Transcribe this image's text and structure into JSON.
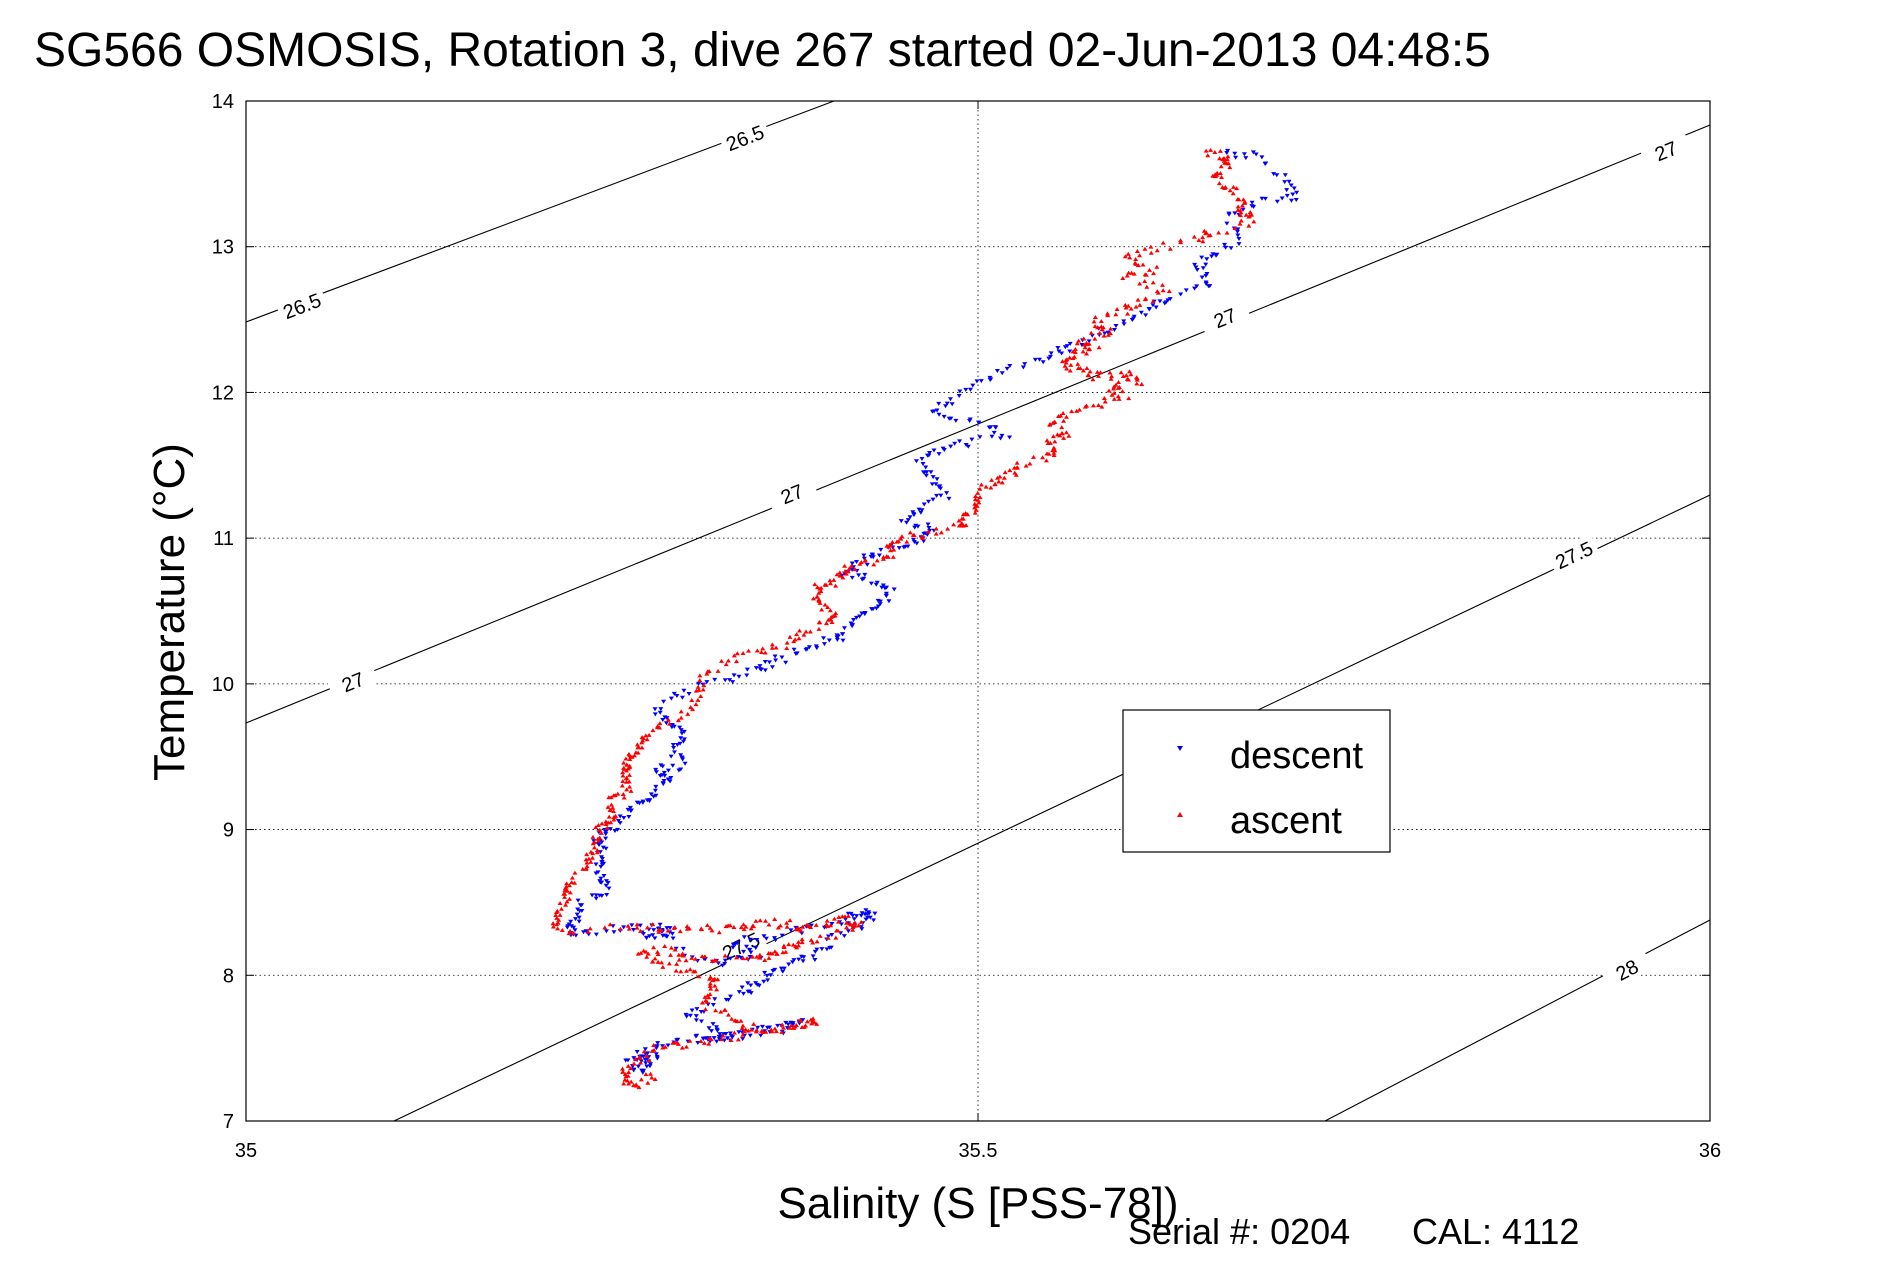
{
  "chart_data": {
    "type": "scatter",
    "title": "SG566 OSMOSIS, Rotation 3, dive 267 started 02-Jun-2013 04:48:5",
    "xlabel": "Salinity (S [PSS-78])",
    "ylabel": "Temperature (°C)",
    "xlim": [
      35,
      36
    ],
    "ylim": [
      7,
      14
    ],
    "xticks": [
      35,
      35.5,
      36
    ],
    "xtick_labels": [
      "35",
      "35.5",
      "36"
    ],
    "yticks": [
      7,
      8,
      9,
      10,
      11,
      12,
      13,
      14
    ],
    "ytick_labels": [
      "7",
      "8",
      "9",
      "10",
      "11",
      "12",
      "13",
      "14"
    ],
    "grid": true,
    "legend_position": "center-right",
    "density_contours": [
      {
        "level": "26.5",
        "labels": [
          "26.5",
          "26.5"
        ]
      },
      {
        "level": "27",
        "labels": [
          "27",
          "27",
          "27",
          "27"
        ]
      },
      {
        "level": "27.5",
        "labels": [
          "27.5",
          "27.5"
        ]
      },
      {
        "level": "28",
        "labels": [
          "28"
        ]
      }
    ],
    "series": [
      {
        "name": "descent",
        "color": "#0000ff",
        "marker": "triangle-down",
        "path": [
          [
            35.67,
            13.65
          ],
          [
            35.69,
            13.62
          ],
          [
            35.71,
            13.45
          ],
          [
            35.72,
            13.35
          ],
          [
            35.69,
            13.3
          ],
          [
            35.67,
            13.2
          ],
          [
            35.68,
            13.05
          ],
          [
            35.66,
            12.95
          ],
          [
            35.65,
            12.85
          ],
          [
            35.66,
            12.72
          ],
          [
            35.63,
            12.65
          ],
          [
            35.62,
            12.58
          ],
          [
            35.6,
            12.5
          ],
          [
            35.58,
            12.4
          ],
          [
            35.56,
            12.3
          ],
          [
            35.55,
            12.25
          ],
          [
            35.52,
            12.15
          ],
          [
            35.5,
            12.05
          ],
          [
            35.48,
            11.95
          ],
          [
            35.47,
            11.85
          ],
          [
            35.5,
            11.8
          ],
          [
            35.52,
            11.72
          ],
          [
            35.49,
            11.65
          ],
          [
            35.47,
            11.58
          ],
          [
            35.46,
            11.5
          ],
          [
            35.47,
            11.4
          ],
          [
            35.48,
            11.3
          ],
          [
            35.46,
            11.2
          ],
          [
            35.45,
            11.12
          ],
          [
            35.47,
            11.05
          ],
          [
            35.46,
            11.0
          ],
          [
            35.45,
            10.95
          ],
          [
            35.43,
            10.9
          ],
          [
            35.42,
            10.82
          ],
          [
            35.41,
            10.75
          ],
          [
            35.43,
            10.7
          ],
          [
            35.44,
            10.62
          ],
          [
            35.43,
            10.55
          ],
          [
            35.42,
            10.45
          ],
          [
            35.41,
            10.35
          ],
          [
            35.4,
            10.3
          ],
          [
            35.38,
            10.25
          ],
          [
            35.36,
            10.15
          ],
          [
            35.35,
            10.1
          ],
          [
            35.33,
            10.03
          ],
          [
            35.3,
            9.95
          ],
          [
            35.28,
            9.82
          ],
          [
            35.29,
            9.75
          ],
          [
            35.3,
            9.65
          ],
          [
            35.29,
            9.55
          ],
          [
            35.3,
            9.45
          ],
          [
            35.28,
            9.4
          ],
          [
            35.29,
            9.35
          ],
          [
            35.28,
            9.25
          ],
          [
            35.27,
            9.2
          ],
          [
            35.26,
            9.1
          ],
          [
            35.25,
            9.0
          ],
          [
            35.24,
            8.95
          ],
          [
            35.245,
            8.85
          ],
          [
            35.24,
            8.75
          ],
          [
            35.245,
            8.65
          ],
          [
            35.245,
            8.58
          ],
          [
            35.23,
            8.5
          ],
          [
            35.225,
            8.4
          ],
          [
            35.22,
            8.3
          ],
          [
            35.23,
            8.28
          ],
          [
            35.255,
            8.33
          ],
          [
            35.28,
            8.33
          ],
          [
            35.29,
            8.3
          ],
          [
            35.27,
            8.27
          ],
          [
            35.29,
            8.25
          ],
          [
            35.31,
            8.1
          ],
          [
            35.33,
            8.08
          ],
          [
            35.35,
            8.15
          ],
          [
            35.33,
            8.22
          ],
          [
            35.36,
            8.27
          ],
          [
            35.385,
            8.32
          ],
          [
            35.41,
            8.39
          ],
          [
            35.42,
            8.43
          ],
          [
            35.43,
            8.42
          ],
          [
            35.42,
            8.33
          ],
          [
            35.4,
            8.25
          ],
          [
            35.39,
            8.15
          ],
          [
            35.375,
            8.08
          ],
          [
            35.36,
            8.02
          ],
          [
            35.35,
            7.95
          ],
          [
            35.34,
            7.88
          ],
          [
            35.32,
            7.8
          ],
          [
            35.3,
            7.72
          ],
          [
            35.32,
            7.65
          ],
          [
            35.33,
            7.58
          ],
          [
            35.31,
            7.54
          ],
          [
            35.335,
            7.6
          ],
          [
            35.36,
            7.65
          ],
          [
            35.38,
            7.67
          ],
          [
            35.36,
            7.62
          ],
          [
            35.33,
            7.58
          ],
          [
            35.3,
            7.55
          ],
          [
            35.28,
            7.5
          ],
          [
            35.27,
            7.45
          ],
          [
            35.26,
            7.4
          ],
          [
            35.27,
            7.35
          ],
          [
            35.28,
            7.45
          ],
          [
            35.27,
            7.38
          ]
        ]
      },
      {
        "name": "ascent",
        "color": "#ff0000",
        "marker": "triangle-up",
        "path": [
          [
            35.655,
            13.65
          ],
          [
            35.67,
            13.62
          ],
          [
            35.67,
            13.55
          ],
          [
            35.66,
            13.48
          ],
          [
            35.67,
            13.4
          ],
          [
            35.68,
            13.33
          ],
          [
            35.68,
            13.25
          ],
          [
            35.69,
            13.18
          ],
          [
            35.66,
            13.1
          ],
          [
            35.65,
            13.05
          ],
          [
            35.62,
            12.98
          ],
          [
            35.6,
            12.92
          ],
          [
            35.62,
            12.85
          ],
          [
            35.6,
            12.78
          ],
          [
            35.63,
            12.7
          ],
          [
            35.61,
            12.62
          ],
          [
            35.6,
            12.55
          ],
          [
            35.58,
            12.48
          ],
          [
            35.59,
            12.42
          ],
          [
            35.57,
            12.36
          ],
          [
            35.58,
            12.3
          ],
          [
            35.565,
            12.25
          ],
          [
            35.56,
            12.2
          ],
          [
            35.57,
            12.15
          ],
          [
            35.58,
            12.1
          ],
          [
            35.6,
            12.12
          ],
          [
            35.61,
            12.08
          ],
          [
            35.59,
            12.03
          ],
          [
            35.6,
            11.98
          ],
          [
            35.58,
            11.92
          ],
          [
            35.56,
            11.85
          ],
          [
            35.55,
            11.78
          ],
          [
            35.56,
            11.72
          ],
          [
            35.55,
            11.64
          ],
          [
            35.55,
            11.57
          ],
          [
            35.53,
            11.5
          ],
          [
            35.52,
            11.43
          ],
          [
            35.51,
            11.38
          ],
          [
            35.5,
            11.3
          ],
          [
            35.5,
            11.22
          ],
          [
            35.49,
            11.15
          ],
          [
            35.49,
            11.09
          ],
          [
            35.47,
            11.05
          ],
          [
            35.45,
            11.0
          ],
          [
            35.44,
            10.95
          ],
          [
            35.44,
            10.88
          ],
          [
            35.42,
            10.82
          ],
          [
            35.41,
            10.78
          ],
          [
            35.4,
            10.7
          ],
          [
            35.39,
            10.65
          ],
          [
            35.39,
            10.58
          ],
          [
            35.4,
            10.5
          ],
          [
            35.4,
            10.43
          ],
          [
            35.38,
            10.35
          ],
          [
            35.37,
            10.28
          ],
          [
            35.35,
            10.22
          ],
          [
            35.33,
            10.16
          ],
          [
            35.31,
            10.05
          ],
          [
            35.31,
            9.92
          ],
          [
            35.3,
            9.78
          ],
          [
            35.28,
            9.7
          ],
          [
            35.27,
            9.62
          ],
          [
            35.27,
            9.55
          ],
          [
            35.26,
            9.48
          ],
          [
            35.26,
            9.42
          ],
          [
            35.26,
            9.35
          ],
          [
            35.26,
            9.28
          ],
          [
            35.25,
            9.2
          ],
          [
            35.25,
            9.12
          ],
          [
            35.25,
            9.05
          ],
          [
            35.24,
            8.98
          ],
          [
            35.24,
            8.9
          ],
          [
            35.235,
            8.82
          ],
          [
            35.23,
            8.72
          ],
          [
            35.22,
            8.62
          ],
          [
            35.22,
            8.55
          ],
          [
            35.215,
            8.45
          ],
          [
            35.21,
            8.35
          ],
          [
            35.22,
            8.3
          ],
          [
            35.26,
            8.33
          ],
          [
            35.28,
            8.32
          ],
          [
            35.3,
            8.33
          ],
          [
            35.32,
            8.32
          ],
          [
            35.34,
            8.33
          ],
          [
            35.35,
            8.36
          ],
          [
            35.37,
            8.35
          ],
          [
            35.38,
            8.33
          ],
          [
            35.4,
            8.36
          ],
          [
            35.41,
            8.38
          ],
          [
            35.42,
            8.35
          ],
          [
            35.4,
            8.28
          ],
          [
            35.38,
            8.22
          ],
          [
            35.37,
            8.18
          ],
          [
            35.36,
            8.14
          ],
          [
            35.35,
            8.12
          ],
          [
            35.32,
            8.1
          ],
          [
            35.3,
            8.12
          ],
          [
            35.29,
            8.18
          ],
          [
            35.27,
            8.15
          ],
          [
            35.28,
            8.08
          ],
          [
            35.3,
            8.02
          ],
          [
            35.32,
            7.98
          ],
          [
            35.32,
            7.9
          ],
          [
            35.31,
            7.82
          ],
          [
            35.33,
            7.72
          ],
          [
            35.34,
            7.65
          ],
          [
            35.36,
            7.62
          ],
          [
            35.38,
            7.66
          ],
          [
            35.39,
            7.68
          ],
          [
            35.37,
            7.64
          ],
          [
            35.34,
            7.6
          ],
          [
            35.32,
            7.55
          ],
          [
            35.3,
            7.52
          ],
          [
            35.28,
            7.5
          ],
          [
            35.27,
            7.42
          ],
          [
            35.26,
            7.35
          ],
          [
            35.26,
            7.28
          ],
          [
            35.27,
            7.25
          ],
          [
            35.28,
            7.32
          ]
        ]
      }
    ],
    "legend": [
      "descent",
      "ascent"
    ]
  },
  "footer": {
    "serial": "Serial #: 0204",
    "cal": "CAL: 4112"
  }
}
